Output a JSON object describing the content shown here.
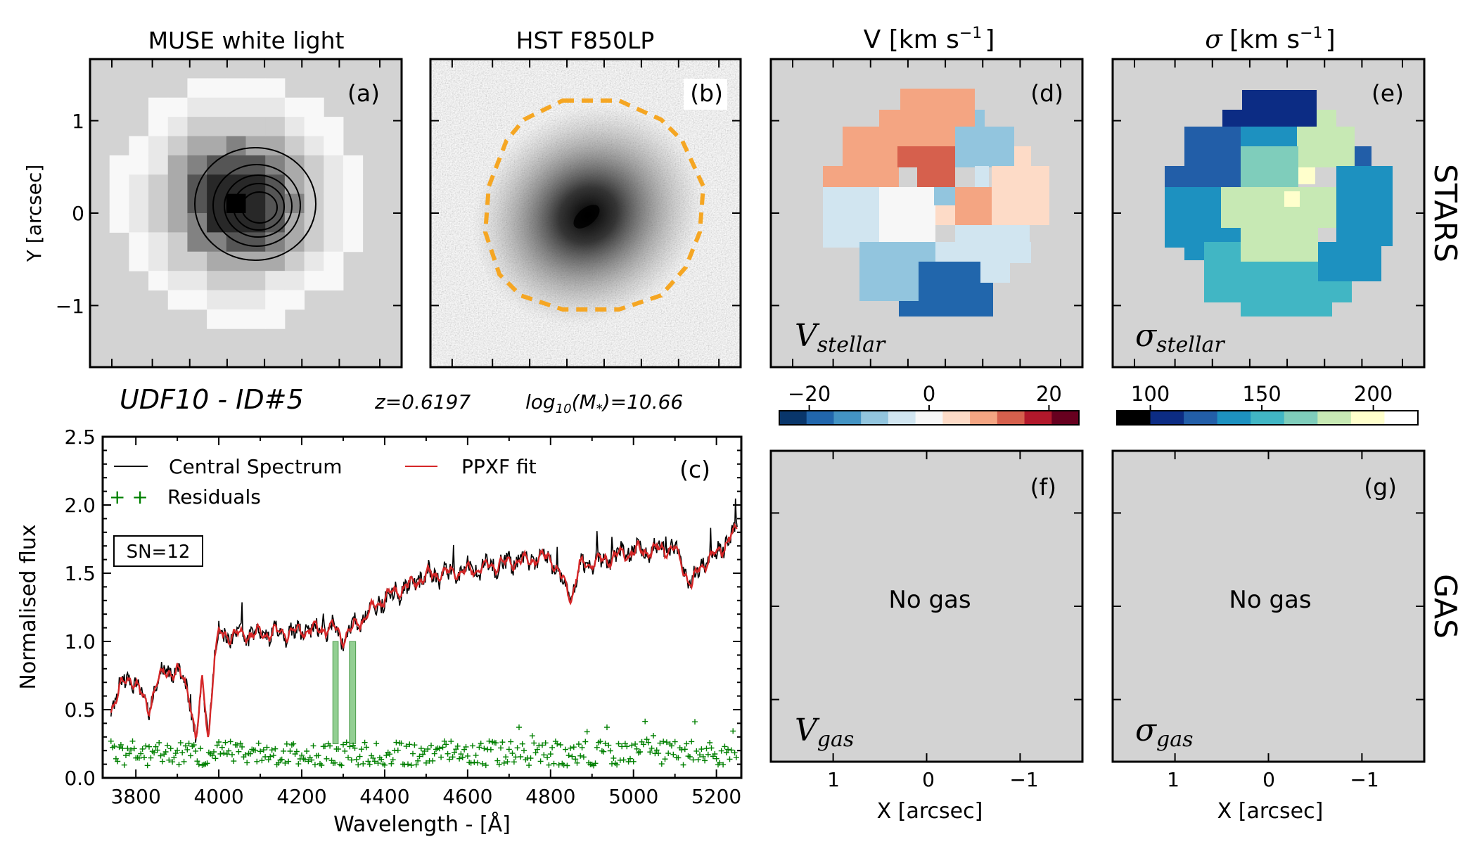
{
  "panels": {
    "a": {
      "title": "MUSE white light",
      "label": "(a)",
      "ylabel": "Y [arcsec]",
      "yticks": [
        "1",
        "0",
        "−1"
      ]
    },
    "b": {
      "title": "HST F850LP",
      "label": "(b)"
    },
    "d": {
      "title": "V [km s",
      "exp": "−1",
      "close": "]",
      "label": "(d)",
      "tag": "stellar",
      "tag_sym": "V"
    },
    "e": {
      "title_sym": "σ",
      "title": "[km s",
      "exp": "−1",
      "close": "]",
      "label": "(e)",
      "tag": "stellar",
      "tag_sym": "σ"
    },
    "f": {
      "label": "(f)",
      "msg": "No gas",
      "tag": "gas",
      "tag_sym": "V",
      "xticks": [
        "1",
        "0",
        "−1"
      ],
      "xlabel": "X [arcsec]"
    },
    "g": {
      "label": "(g)",
      "msg": "No gas",
      "tag": "gas",
      "tag_sym": "σ",
      "xticks": [
        "1",
        "0",
        "−1"
      ],
      "xlabel": "X [arcsec]"
    }
  },
  "side_labels": {
    "stars": "STARS",
    "gas": "GAS"
  },
  "object": {
    "name": "UDF10 - ID#5",
    "z": "z=0.6197",
    "mass_pre": "log",
    "mass_sub": "10",
    "mass_mid": "(M",
    "mass_star": "*",
    "mass_post": ")=10.66"
  },
  "colorbars": {
    "velocity": {
      "ticks": [
        "−20",
        "0",
        "20"
      ],
      "tick_values": [
        -20,
        0,
        20
      ],
      "range": [
        -25,
        25
      ],
      "colors": [
        "#09366b",
        "#2166ac",
        "#4393c3",
        "#92c5de",
        "#d1e5f0",
        "#f7f7f7",
        "#fddbc7",
        "#f4a582",
        "#d6604d",
        "#b2182b",
        "#67001f"
      ]
    },
    "sigma": {
      "ticks": [
        "100",
        "150",
        "200"
      ],
      "tick_values": [
        100,
        150,
        200
      ],
      "range": [
        85,
        220
      ],
      "colors": [
        "#000000",
        "#0c2c84",
        "#225ea8",
        "#1d91c0",
        "#41b6c4",
        "#7fcdbb",
        "#c7e9b4",
        "#ffffcc",
        "#ffffff"
      ]
    }
  },
  "chart_data": {
    "type": "line",
    "label": "(c)",
    "xlabel": "Wavelength - [Å]",
    "ylabel": "Normalised flux",
    "xlim": [
      3720,
      5260
    ],
    "ylim": [
      0.0,
      2.5
    ],
    "xticks": [
      3800,
      4000,
      4200,
      4400,
      4600,
      4800,
      5000,
      5200
    ],
    "yticks": [
      0.0,
      0.5,
      1.0,
      1.5,
      2.0,
      2.5
    ],
    "annotation": "SN=12",
    "legend": [
      "Central Spectrum",
      "PPXF fit",
      "Residuals"
    ],
    "masked_regions": [
      [
        4275,
        4288
      ],
      [
        4315,
        4330
      ]
    ],
    "continuum": [
      [
        3740,
        0.48
      ],
      [
        3760,
        0.68
      ],
      [
        3800,
        0.72
      ],
      [
        3830,
        0.48
      ],
      [
        3850,
        0.72
      ],
      [
        3900,
        0.8
      ],
      [
        3930,
        0.6
      ],
      [
        3945,
        0.28
      ],
      [
        3960,
        0.7
      ],
      [
        3975,
        0.3
      ],
      [
        3990,
        0.9
      ],
      [
        4000,
        1.05
      ],
      [
        4100,
        1.05
      ],
      [
        4200,
        1.08
      ],
      [
        4280,
        1.1
      ],
      [
        4300,
        1.02
      ],
      [
        4330,
        1.12
      ],
      [
        4400,
        1.32
      ],
      [
        4500,
        1.48
      ],
      [
        4600,
        1.52
      ],
      [
        4700,
        1.58
      ],
      [
        4800,
        1.62
      ],
      [
        4850,
        1.32
      ],
      [
        4870,
        1.55
      ],
      [
        5000,
        1.66
      ],
      [
        5100,
        1.68
      ],
      [
        5140,
        1.4
      ],
      [
        5160,
        1.55
      ],
      [
        5200,
        1.64
      ],
      [
        5250,
        1.82
      ]
    ],
    "series": [
      {
        "name": "Central Spectrum",
        "color": "#000000",
        "noise": 0.06
      },
      {
        "name": "PPXF fit",
        "color": "#d62728",
        "noise": 0.015
      },
      {
        "name": "Residuals",
        "color": "#008000",
        "center": 0.18,
        "spread": 0.09
      }
    ]
  }
}
